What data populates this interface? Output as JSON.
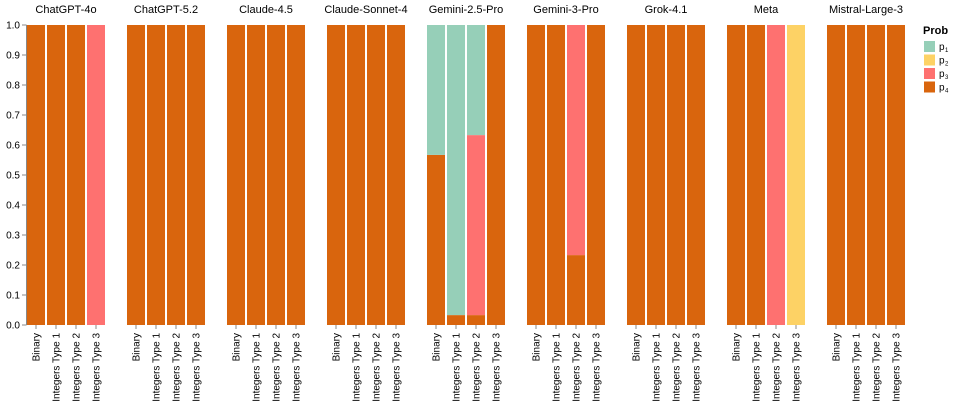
{
  "chart_data": {
    "type": "bar",
    "stacked": true,
    "ylim": [
      0,
      1
    ],
    "yticks": [
      "0.0",
      "0.1",
      "0.2",
      "0.3",
      "0.4",
      "0.5",
      "0.6",
      "0.7",
      "0.8",
      "0.9",
      "1.0"
    ],
    "categories": [
      "Binary",
      "Integers Type 1",
      "Integers Type 2",
      "Integers Type 3"
    ],
    "legend": {
      "title": "Prob",
      "position": "right",
      "entries": [
        {
          "key": "p1",
          "label": "p",
          "sub": "1",
          "color": "#96cfb8"
        },
        {
          "key": "p2",
          "label": "p",
          "sub": "2",
          "color": "#fdd265"
        },
        {
          "key": "p3",
          "label": "p",
          "sub": "3",
          "color": "#fe7170"
        },
        {
          "key": "p4",
          "label": "p",
          "sub": "4",
          "color": "#d9650d"
        }
      ]
    },
    "panels": [
      {
        "title": "ChatGPT-4o",
        "bars": [
          {
            "p1": 0,
            "p2": 0,
            "p3": 0,
            "p4": 1
          },
          {
            "p1": 0,
            "p2": 0,
            "p3": 0,
            "p4": 1
          },
          {
            "p1": 0,
            "p2": 0,
            "p3": 0,
            "p4": 1
          },
          {
            "p1": 0,
            "p2": 0,
            "p3": 1,
            "p4": 0
          }
        ]
      },
      {
        "title": "ChatGPT-5.2",
        "bars": [
          {
            "p1": 0,
            "p2": 0,
            "p3": 0,
            "p4": 1
          },
          {
            "p1": 0,
            "p2": 0,
            "p3": 0,
            "p4": 1
          },
          {
            "p1": 0,
            "p2": 0,
            "p3": 0,
            "p4": 1
          },
          {
            "p1": 0,
            "p2": 0,
            "p3": 0,
            "p4": 1
          }
        ]
      },
      {
        "title": "Claude-4.5",
        "bars": [
          {
            "p1": 0,
            "p2": 0,
            "p3": 0,
            "p4": 1
          },
          {
            "p1": 0,
            "p2": 0,
            "p3": 0,
            "p4": 1
          },
          {
            "p1": 0,
            "p2": 0,
            "p3": 0,
            "p4": 1
          },
          {
            "p1": 0,
            "p2": 0,
            "p3": 0,
            "p4": 1
          }
        ]
      },
      {
        "title": "Claude-Sonnet-4",
        "bars": [
          {
            "p1": 0,
            "p2": 0,
            "p3": 0,
            "p4": 1
          },
          {
            "p1": 0,
            "p2": 0,
            "p3": 0,
            "p4": 1
          },
          {
            "p1": 0,
            "p2": 0,
            "p3": 0,
            "p4": 1
          },
          {
            "p1": 0,
            "p2": 0,
            "p3": 0,
            "p4": 1
          }
        ]
      },
      {
        "title": "Gemini-2.5-Pro",
        "bars": [
          {
            "p1": 0.433,
            "p2": 0,
            "p3": 0,
            "p4": 0.567
          },
          {
            "p1": 0.967,
            "p2": 0,
            "p3": 0,
            "p4": 0.033
          },
          {
            "p1": 0.367,
            "p2": 0,
            "p3": 0.6,
            "p4": 0.033
          },
          {
            "p1": 0,
            "p2": 0,
            "p3": 0,
            "p4": 1
          }
        ]
      },
      {
        "title": "Gemini-3-Pro",
        "bars": [
          {
            "p1": 0,
            "p2": 0,
            "p3": 0,
            "p4": 1
          },
          {
            "p1": 0,
            "p2": 0,
            "p3": 0,
            "p4": 1
          },
          {
            "p1": 0,
            "p2": 0,
            "p3": 0.767,
            "p4": 0.233
          },
          {
            "p1": 0,
            "p2": 0,
            "p3": 0,
            "p4": 1
          }
        ]
      },
      {
        "title": "Grok-4.1",
        "bars": [
          {
            "p1": 0,
            "p2": 0,
            "p3": 0,
            "p4": 1
          },
          {
            "p1": 0,
            "p2": 0,
            "p3": 0,
            "p4": 1
          },
          {
            "p1": 0,
            "p2": 0,
            "p3": 0,
            "p4": 1
          },
          {
            "p1": 0,
            "p2": 0,
            "p3": 0,
            "p4": 1
          }
        ]
      },
      {
        "title": "Meta",
        "bars": [
          {
            "p1": 0,
            "p2": 0,
            "p3": 0,
            "p4": 1
          },
          {
            "p1": 0,
            "p2": 0,
            "p3": 0,
            "p4": 1
          },
          {
            "p1": 0,
            "p2": 0,
            "p3": 1,
            "p4": 0
          },
          {
            "p1": 0,
            "p2": 1,
            "p3": 0,
            "p4": 0
          }
        ]
      },
      {
        "title": "Mistral-Large-3",
        "bars": [
          {
            "p1": 0,
            "p2": 0,
            "p3": 0,
            "p4": 1
          },
          {
            "p1": 0,
            "p2": 0,
            "p3": 0,
            "p4": 1
          },
          {
            "p1": 0,
            "p2": 0,
            "p3": 0,
            "p4": 1
          },
          {
            "p1": 0,
            "p2": 0,
            "p3": 0,
            "p4": 1
          }
        ]
      }
    ]
  }
}
